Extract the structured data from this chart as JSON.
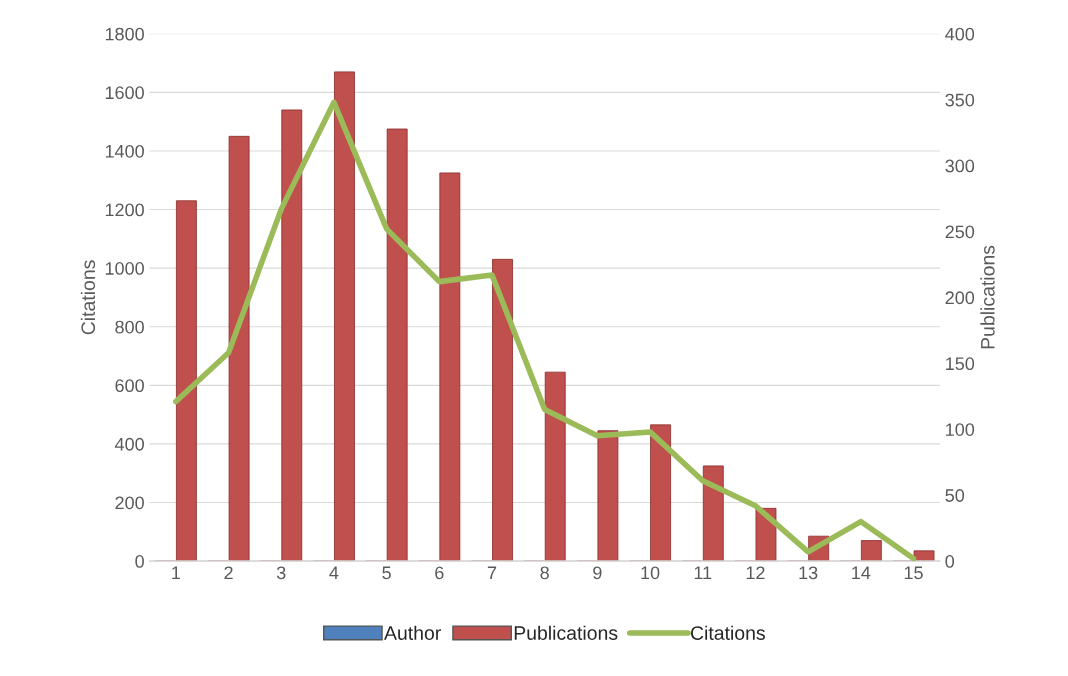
{
  "chart_data": {
    "type": "bar",
    "ylabel": "Citations",
    "y2label": "Publications",
    "categories": [
      "1",
      "2",
      "3",
      "4",
      "5",
      "6",
      "7",
      "8",
      "9",
      "10",
      "11",
      "12",
      "13",
      "14",
      "15"
    ],
    "series": [
      {
        "name": "Author",
        "color": "#4f81bd",
        "values": [
          null,
          null,
          null,
          null,
          null,
          null,
          null,
          null,
          null,
          null,
          null,
          null,
          null,
          null,
          null
        ]
      },
      {
        "name": "Publications",
        "color": "#c0504d",
        "values": [
          1230,
          1450,
          1540,
          1670,
          1475,
          1325,
          1030,
          645,
          445,
          465,
          325,
          180,
          85,
          70,
          35
        ]
      },
      {
        "name": "Citations",
        "type": "line",
        "axis": "y2",
        "color": "#9bbb59",
        "values": [
          121,
          158,
          267,
          348,
          252,
          212,
          217,
          115,
          95,
          98,
          61,
          42,
          7,
          30,
          2
        ]
      }
    ],
    "ylim": [
      0,
      1800
    ],
    "yticks": [
      0,
      200,
      400,
      600,
      800,
      1000,
      1200,
      1400,
      1600,
      1800
    ],
    "y2lim": [
      0,
      400
    ],
    "y2ticks": [
      0,
      50,
      100,
      150,
      200,
      250,
      300,
      350,
      400
    ],
    "grid": "y",
    "legend": "bottom"
  }
}
